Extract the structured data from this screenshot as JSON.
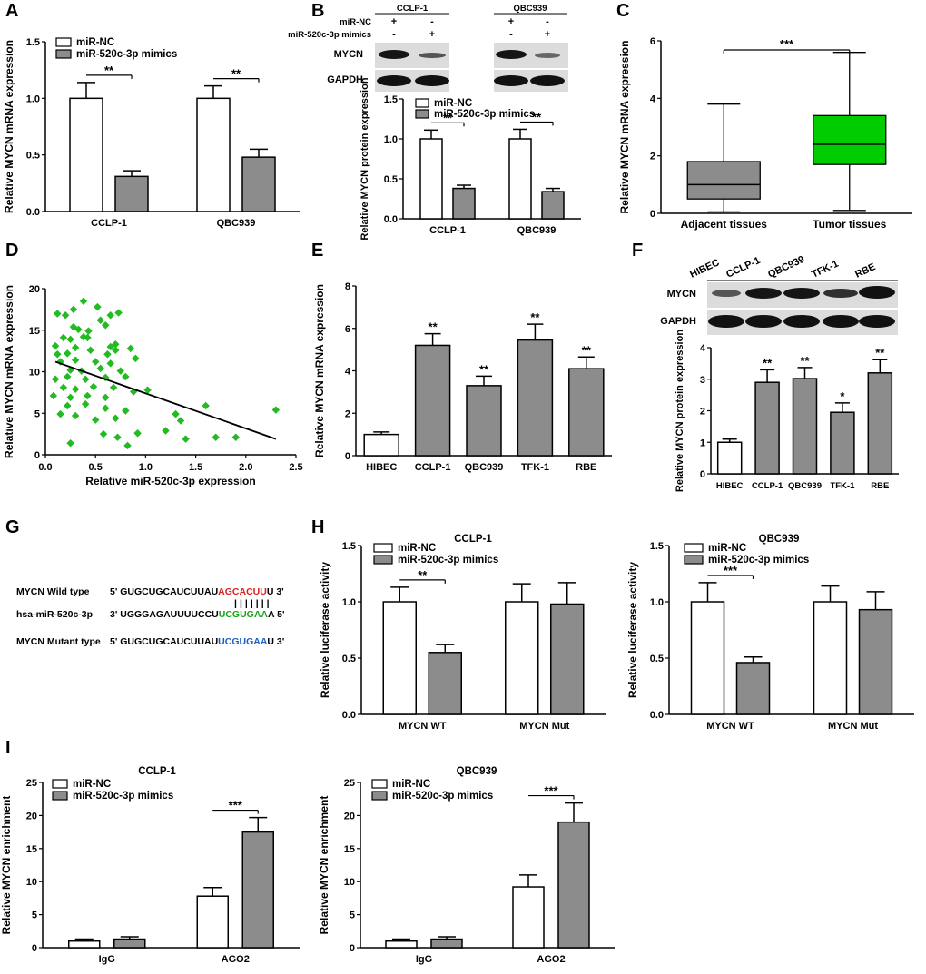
{
  "figure": {
    "panel_labels": [
      "A",
      "B",
      "C",
      "D",
      "E",
      "F",
      "G",
      "H",
      "I"
    ],
    "colors": {
      "white_bar": "#ffffff",
      "gray_bar": "#8c8c8c",
      "green_box": "#00cc00",
      "green_point": "#22bb22",
      "red_seq": "#e02020",
      "green_seq": "#1aa31a",
      "blue_seq": "#1f5fbf"
    }
  },
  "chart_data": [
    {
      "id": "A",
      "type": "bar",
      "ylabel": "Relative MYCN mRNA expression",
      "ylim": [
        0,
        1.5
      ],
      "yticks": [
        "0.0",
        "0.5",
        "1.0",
        "1.5"
      ],
      "categories": [
        "CCLP-1",
        "QBC939"
      ],
      "series": [
        {
          "name": "miR-NC",
          "values": [
            1.0,
            1.0
          ],
          "errors": [
            0.14,
            0.11
          ]
        },
        {
          "name": "miR-520c-3p mimics",
          "values": [
            0.31,
            0.48
          ],
          "errors": [
            0.05,
            0.07
          ]
        }
      ],
      "annotations": [
        "**",
        "**"
      ]
    },
    {
      "id": "B",
      "type": "bar",
      "blot": {
        "groups": [
          "CCLP-1",
          "QBC939"
        ],
        "row_labels": [
          "miR-NC",
          "miR-520c-3p mimics"
        ],
        "signs": [
          [
            "+",
            "-",
            "+",
            "-"
          ],
          [
            "-",
            "+",
            "-",
            "+"
          ]
        ],
        "bands": [
          "MYCN",
          "GAPDH"
        ]
      },
      "ylabel": "Relative MYCN protein expression",
      "ylim": [
        0,
        1.5
      ],
      "yticks": [
        "0.0",
        "0.5",
        "1.0",
        "1.5"
      ],
      "categories": [
        "CCLP-1",
        "QBC939"
      ],
      "series": [
        {
          "name": "miR-NC",
          "values": [
            1.0,
            1.0
          ],
          "errors": [
            0.11,
            0.12
          ]
        },
        {
          "name": "miR-520c-3p mimics",
          "values": [
            0.38,
            0.34
          ],
          "errors": [
            0.04,
            0.04
          ]
        }
      ],
      "annotations": [
        "**",
        "**"
      ]
    },
    {
      "id": "C",
      "type": "box",
      "ylabel": "Relative MYCN mRNA expression",
      "ylim": [
        0,
        6
      ],
      "yticks": [
        "0",
        "2",
        "4",
        "6"
      ],
      "categories": [
        "Adjacent tissues",
        "Tumor tissues"
      ],
      "boxes": [
        {
          "min": 0.05,
          "q1": 0.5,
          "median": 1.0,
          "q3": 1.8,
          "max": 3.8
        },
        {
          "min": 0.1,
          "q1": 1.7,
          "median": 2.4,
          "q3": 3.4,
          "max": 5.6
        }
      ],
      "annotation": "***"
    },
    {
      "id": "D",
      "type": "scatter",
      "xlabel": "Relative miR-520c-3p expression",
      "ylabel": "Relative MYCN mRNA expression",
      "xlim": [
        0,
        2.5
      ],
      "ylim": [
        0,
        20
      ],
      "xticks": [
        "0.0",
        "0.5",
        "1.0",
        "1.5",
        "2.0",
        "2.5"
      ],
      "yticks": [
        "0",
        "5",
        "10",
        "15",
        "20"
      ],
      "points": [
        [
          0.12,
          17
        ],
        [
          0.2,
          16.8
        ],
        [
          0.28,
          17.5
        ],
        [
          0.38,
          18.5
        ],
        [
          0.52,
          17.8
        ],
        [
          0.65,
          16.8
        ],
        [
          0.73,
          17.1
        ],
        [
          0.55,
          16.2
        ],
        [
          0.28,
          15.4
        ],
        [
          0.33,
          15.1
        ],
        [
          0.43,
          14.9
        ],
        [
          0.6,
          15.6
        ],
        [
          0.18,
          14.1
        ],
        [
          0.25,
          13.9
        ],
        [
          0.38,
          14.2
        ],
        [
          0.42,
          14.1
        ],
        [
          0.1,
          13.1
        ],
        [
          0.3,
          12.9
        ],
        [
          0.65,
          13
        ],
        [
          0.7,
          13.3
        ],
        [
          0.12,
          12.1
        ],
        [
          0.22,
          12.2
        ],
        [
          0.45,
          12.6
        ],
        [
          0.62,
          12.1
        ],
        [
          0.7,
          12.6
        ],
        [
          0.85,
          12.8
        ],
        [
          0.15,
          11.2
        ],
        [
          0.3,
          11.4
        ],
        [
          0.5,
          11.2
        ],
        [
          0.65,
          11
        ],
        [
          0.9,
          11.6
        ],
        [
          0.25,
          10.2
        ],
        [
          0.36,
          10.1
        ],
        [
          0.55,
          10.4
        ],
        [
          0.75,
          10.1
        ],
        [
          0.1,
          9.1
        ],
        [
          0.22,
          9.4
        ],
        [
          0.4,
          9.1
        ],
        [
          0.6,
          9.3
        ],
        [
          0.8,
          9.4
        ],
        [
          0.18,
          8.1
        ],
        [
          0.3,
          7.9
        ],
        [
          0.48,
          8.2
        ],
        [
          0.68,
          8.1
        ],
        [
          0.88,
          7.6
        ],
        [
          1.02,
          7.8
        ],
        [
          0.08,
          7.1
        ],
        [
          0.25,
          6.9
        ],
        [
          0.42,
          7.1
        ],
        [
          0.6,
          6.9
        ],
        [
          0.22,
          5.9
        ],
        [
          0.4,
          6.1
        ],
        [
          0.6,
          5.6
        ],
        [
          0.8,
          5.3
        ],
        [
          1.3,
          4.9
        ],
        [
          1.6,
          5.9
        ],
        [
          0.15,
          4.9
        ],
        [
          0.3,
          4.7
        ],
        [
          0.5,
          4.2
        ],
        [
          0.7,
          4.4
        ],
        [
          1.35,
          4.1
        ],
        [
          1.2,
          2.9
        ],
        [
          0.58,
          2.5
        ],
        [
          0.72,
          2.1
        ],
        [
          1.4,
          1.9
        ],
        [
          1.7,
          2.1
        ],
        [
          1.9,
          2.1
        ],
        [
          0.25,
          1.4
        ],
        [
          0.82,
          1.1
        ],
        [
          0.92,
          2.6
        ],
        [
          2.3,
          5.4
        ]
      ],
      "fit_line": {
        "x": [
          0.1,
          2.3
        ],
        "y": [
          11.2,
          1.9
        ]
      }
    },
    {
      "id": "E",
      "type": "bar",
      "ylabel": "Relative MYCN mRNA expression",
      "ylim": [
        0,
        8
      ],
      "yticks": [
        "0",
        "2",
        "4",
        "6",
        "8"
      ],
      "categories": [
        "HIBEC",
        "CCLP-1",
        "QBC939",
        "TFK-1",
        "RBE"
      ],
      "values": [
        1.0,
        5.2,
        3.3,
        5.45,
        4.1
      ],
      "errors": [
        0.12,
        0.55,
        0.45,
        0.75,
        0.55
      ],
      "bar_colors": [
        "white",
        "gray",
        "gray",
        "gray",
        "gray"
      ],
      "annotations": [
        "",
        "**",
        "**",
        "**",
        "**"
      ]
    },
    {
      "id": "F",
      "type": "bar",
      "blot": {
        "lanes": [
          "HIBEC",
          "CCLP-1",
          "QBC939",
          "TFK-1",
          "RBE"
        ],
        "bands": [
          "MYCN",
          "GAPDH"
        ]
      },
      "ylabel": "Relative MYCN protein expression",
      "ylim": [
        0,
        4
      ],
      "yticks": [
        "0",
        "1",
        "2",
        "3",
        "4"
      ],
      "categories": [
        "HIBEC",
        "CCLP-1",
        "QBC939",
        "TFK-1",
        "RBE"
      ],
      "values": [
        1.0,
        2.9,
        3.02,
        1.95,
        3.2
      ],
      "errors": [
        0.1,
        0.4,
        0.35,
        0.3,
        0.42
      ],
      "bar_colors": [
        "white",
        "gray",
        "gray",
        "gray",
        "gray"
      ],
      "annotations": [
        "",
        "**",
        "**",
        "*",
        "**"
      ]
    },
    {
      "id": "H1",
      "type": "bar",
      "title": "CCLP-1",
      "ylabel": "Relative luciferase activity",
      "ylim": [
        0,
        1.5
      ],
      "yticks": [
        "0.0",
        "0.5",
        "1.0",
        "1.5"
      ],
      "categories": [
        "MYCN WT",
        "MYCN Mut"
      ],
      "series": [
        {
          "name": "miR-NC",
          "values": [
            1.0,
            1.0
          ],
          "errors": [
            0.13,
            0.16
          ]
        },
        {
          "name": "miR-520c-3p mimics",
          "values": [
            0.55,
            0.98
          ],
          "errors": [
            0.07,
            0.19
          ]
        }
      ],
      "annotations": [
        "**",
        ""
      ]
    },
    {
      "id": "H2",
      "type": "bar",
      "title": "QBC939",
      "ylabel": "Relative luciferase activity",
      "ylim": [
        0,
        1.5
      ],
      "yticks": [
        "0.0",
        "0.5",
        "1.0",
        "1.5"
      ],
      "categories": [
        "MYCN WT",
        "MYCN Mut"
      ],
      "series": [
        {
          "name": "miR-NC",
          "values": [
            1.0,
            1.0
          ],
          "errors": [
            0.17,
            0.14
          ]
        },
        {
          "name": "miR-520c-3p mimics",
          "values": [
            0.46,
            0.93
          ],
          "errors": [
            0.05,
            0.16
          ]
        }
      ],
      "annotations": [
        "***",
        ""
      ]
    },
    {
      "id": "I1",
      "type": "bar",
      "title": "CCLP-1",
      "ylabel": "Relative MYCN enrichment",
      "ylim": [
        0,
        25
      ],
      "yticks": [
        "0",
        "5",
        "10",
        "15",
        "20",
        "25"
      ],
      "categories": [
        "IgG",
        "AGO2"
      ],
      "series": [
        {
          "name": "miR-NC",
          "values": [
            1.0,
            7.8
          ],
          "errors": [
            0.3,
            1.3
          ]
        },
        {
          "name": "miR-520c-3p mimics",
          "values": [
            1.3,
            17.5
          ],
          "errors": [
            0.35,
            2.2
          ]
        }
      ],
      "annotations": [
        "",
        "***"
      ]
    },
    {
      "id": "I2",
      "type": "bar",
      "title": "QBC939",
      "ylabel": "Relative MYCN enrichment",
      "ylim": [
        0,
        25
      ],
      "yticks": [
        "0",
        "5",
        "10",
        "15",
        "20",
        "25"
      ],
      "categories": [
        "IgG",
        "AGO2"
      ],
      "series": [
        {
          "name": "miR-NC",
          "values": [
            1.0,
            9.2
          ],
          "errors": [
            0.3,
            1.8
          ]
        },
        {
          "name": "miR-520c-3p mimics",
          "values": [
            1.3,
            19.0
          ],
          "errors": [
            0.35,
            2.9
          ]
        }
      ],
      "annotations": [
        "",
        "***"
      ]
    }
  ],
  "sequences": {
    "rows": [
      {
        "label": "MYCN Wild type",
        "prefix": "5' GUGCUGCAUCUUAU",
        "core": "AGCACUU",
        "suffix": "U 3'",
        "core_color": "#e02020"
      },
      {
        "label": "hsa-miR-520c-3p",
        "prefix": "3' UGGGAGAUUUUCCU",
        "core": "UCGUGAA",
        "suffix": "A 5'",
        "core_color": "#1aa31a"
      },
      {
        "label": "MYCN Mutant type",
        "prefix": "5' GUGCUGCAUCUUAU",
        "core": "UCGUGAA",
        "suffix": "U 3'",
        "core_color": "#1f5fbf"
      }
    ],
    "pairing": "|||||||"
  }
}
